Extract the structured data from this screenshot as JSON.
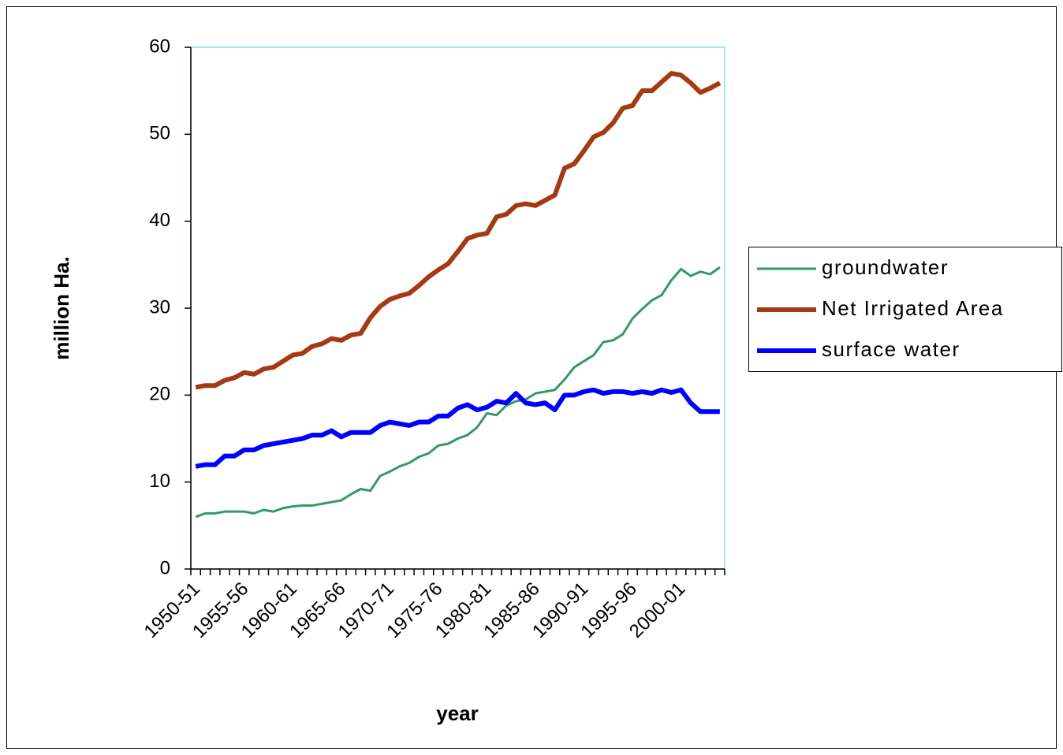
{
  "chart_data": {
    "type": "line",
    "x_label": "year",
    "y_label": "million Ha.",
    "categories": [
      "1950-51",
      null,
      null,
      null,
      null,
      "1955-56",
      null,
      null,
      null,
      null,
      "1960-61",
      null,
      null,
      null,
      null,
      "1965-66",
      null,
      null,
      null,
      null,
      "1970-71",
      null,
      null,
      null,
      null,
      "1975-76",
      null,
      null,
      null,
      null,
      "1980-81",
      null,
      null,
      null,
      null,
      "1985-86",
      null,
      null,
      null,
      null,
      "1990-91",
      null,
      null,
      null,
      null,
      "1995-96",
      null,
      null,
      null,
      null,
      "2000-01",
      null,
      null,
      null,
      null
    ],
    "ylim": [
      0,
      60
    ],
    "yticks": [
      0,
      10,
      20,
      30,
      40,
      50,
      60
    ],
    "legend": "right",
    "series": [
      {
        "name": "groundwater",
        "color": "#339966",
        "width": 3,
        "values": [
          6.0,
          6.4,
          6.4,
          6.6,
          6.6,
          6.6,
          6.4,
          6.8,
          6.6,
          7.0,
          7.2,
          7.3,
          7.3,
          7.5,
          7.7,
          7.9,
          8.6,
          9.2,
          9.0,
          10.7,
          11.2,
          11.8,
          12.2,
          12.9,
          13.3,
          14.2,
          14.4,
          15.0,
          15.4,
          16.3,
          17.9,
          17.7,
          18.8,
          19.3,
          19.5,
          20.2,
          20.4,
          20.6,
          21.8,
          23.2,
          23.9,
          24.6,
          26.1,
          26.3,
          27.0,
          28.8,
          29.9,
          30.9,
          31.5,
          33.2,
          34.5,
          33.7,
          34.2,
          33.9,
          34.7
        ]
      },
      {
        "name": "Net Irrigated Area",
        "color": "#a33a12",
        "width": 6,
        "values": [
          20.9,
          21.1,
          21.1,
          21.7,
          22.0,
          22.6,
          22.4,
          23.0,
          23.2,
          23.9,
          24.6,
          24.8,
          25.6,
          25.9,
          26.5,
          26.3,
          26.9,
          27.1,
          28.9,
          30.2,
          31.0,
          31.4,
          31.7,
          32.6,
          33.6,
          34.4,
          35.1,
          36.5,
          38.0,
          38.4,
          38.6,
          40.5,
          40.8,
          41.8,
          42.0,
          41.8,
          42.4,
          43.0,
          46.1,
          46.6,
          48.1,
          49.7,
          50.2,
          51.3,
          53.0,
          53.3,
          55.0,
          55.0,
          56.0,
          57.0,
          56.8,
          55.9,
          54.8,
          55.3,
          55.9
        ]
      },
      {
        "name": "surface water",
        "color": "#0000ff",
        "width": 6,
        "values": [
          11.8,
          12.0,
          12.0,
          13.0,
          13.0,
          13.7,
          13.7,
          14.2,
          14.4,
          14.6,
          14.8,
          15.0,
          15.4,
          15.4,
          15.9,
          15.2,
          15.7,
          15.7,
          15.7,
          16.5,
          16.9,
          16.7,
          16.5,
          16.9,
          16.9,
          17.6,
          17.6,
          18.5,
          18.9,
          18.3,
          18.6,
          19.3,
          19.1,
          20.2,
          19.1,
          18.9,
          19.1,
          18.3,
          20.0,
          20.0,
          20.4,
          20.6,
          20.2,
          20.4,
          20.4,
          20.2,
          20.4,
          20.2,
          20.6,
          20.3,
          20.6,
          19.1,
          18.1,
          18.1,
          18.1
        ]
      }
    ]
  }
}
